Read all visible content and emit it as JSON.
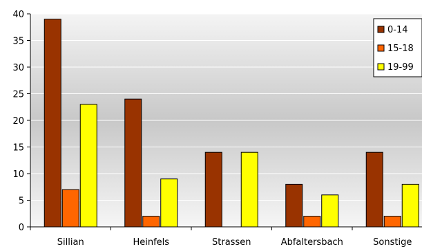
{
  "chart_data": {
    "type": "bar",
    "categories": [
      "Sillian",
      "Heinfels",
      "Strassen",
      "Abfaltersbach",
      "Sonstige"
    ],
    "series": [
      {
        "name": "0-14",
        "color": "#993300",
        "values": [
          39,
          24,
          14,
          8,
          14
        ]
      },
      {
        "name": "15-18",
        "color": "#FF6600",
        "values": [
          7,
          2,
          0,
          2,
          2
        ]
      },
      {
        "name": "19-99",
        "color": "#FFFF00",
        "values": [
          23,
          9,
          14,
          6,
          8
        ]
      }
    ],
    "ylim": [
      0,
      40
    ],
    "yticks": [
      0,
      5,
      10,
      15,
      20,
      25,
      30,
      35,
      40
    ],
    "grid": true,
    "legend_position": "top-right",
    "plot_background": "gradient gray-to-white",
    "title": "",
    "xlabel": "",
    "ylabel": ""
  }
}
